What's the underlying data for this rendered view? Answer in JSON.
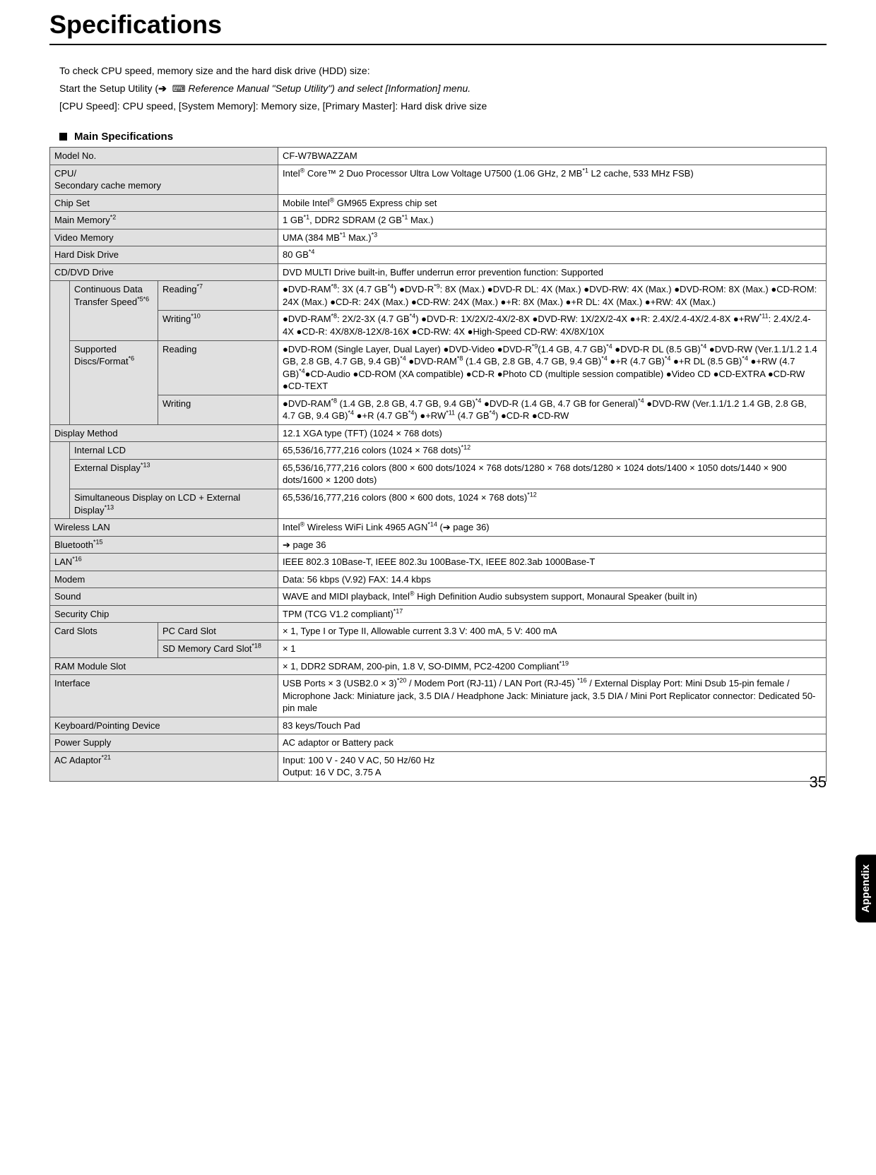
{
  "title": "Specifications",
  "intro": {
    "line1": "To check CPU speed, memory size and the hard disk drive (HDD) size:",
    "line2a": "Start the Setup Utility (",
    "line2b": " Reference Manual \"Setup Utility\") and select [Information] menu.",
    "line3": "[CPU Speed]: CPU speed, [System Memory]: Memory size, [Primary Master]: Hard disk drive size"
  },
  "sectionTitle": "Main Specifications",
  "sideTab": "Appendix",
  "pageNum": "35",
  "rows": {
    "modelNo": {
      "label": "Model No.",
      "value": "CF-W7BWAZZAM"
    },
    "cpu": {
      "label": "CPU/\nSecondary cache memory",
      "valueHtml": "Intel<sup>®</sup> Core™ 2 Duo Processor Ultra Low Voltage U7500 (1.06 GHz, 2 MB<sup>*1</sup> L2 cache, 533 MHz FSB)"
    },
    "chipset": {
      "label": "Chip Set",
      "valueHtml": "Mobile Intel<sup>®</sup> GM965 Express chip set"
    },
    "mainMem": {
      "labelHtml": "Main Memory<sup>*2</sup>",
      "valueHtml": "1 GB<sup>*1</sup>, DDR2 SDRAM (2 GB<sup>*1</sup> Max.)"
    },
    "videoMem": {
      "label": "Video Memory",
      "valueHtml": "UMA (384 MB<sup>*1</sup> Max.)<sup>*3</sup>"
    },
    "hdd": {
      "label": "Hard Disk Drive",
      "valueHtml": "80 GB<sup>*4</sup>"
    },
    "cddvd": {
      "label": "CD/DVD Drive",
      "value": "DVD MULTI Drive built-in, Buffer underrun error prevention function: Supported"
    },
    "contTrans": {
      "labelHtml": "Continuous Data Transfer Speed<sup>*5*6</sup>"
    },
    "reading7": {
      "labelHtml": "Reading<sup>*7</sup>",
      "valueHtml": "●DVD-RAM<sup>*8</sup>: 3X (4.7 GB<sup>*4</sup>) ●DVD-R<sup>*9</sup>: 8X (Max.) ●DVD-R DL: 4X (Max.) ●DVD-RW: 4X (Max.) ●DVD-ROM: 8X (Max.) ●CD-ROM: 24X (Max.) ●CD-R: 24X (Max.) ●CD-RW: 24X (Max.) ●+R: 8X (Max.) ●+R DL: 4X (Max.) ●+RW: 4X (Max.)"
    },
    "writing10": {
      "labelHtml": "Writing<sup>*10</sup>",
      "valueHtml": "●DVD-RAM<sup>*8</sup>: 2X/2-3X (4.7 GB<sup>*4</sup>) ●DVD-R: 1X/2X/2-4X/2-8X ●DVD-RW: 1X/2X/2-4X ●+R: 2.4X/2.4-4X/2.4-8X ●+RW<sup>*11</sup>: 2.4X/2.4-4X ●CD-R: 4X/8X/8-12X/8-16X ●CD-RW: 4X ●High-Speed CD-RW: 4X/8X/10X"
    },
    "supported": {
      "labelHtml": "Supported Discs/Format<sup>*6</sup>"
    },
    "supReading": {
      "label": "Reading",
      "valueHtml": "●DVD-ROM (Single Layer, Dual Layer) ●DVD-Video ●DVD-R<sup>*9</sup>(1.4 GB, 4.7 GB)<sup>*4</sup> ●DVD-R DL (8.5 GB)<sup>*4</sup> ●DVD-RW (Ver.1.1/1.2 1.4 GB, 2.8 GB, 4.7 GB, 9.4 GB)<sup>*4</sup> ●DVD-RAM<sup>*8</sup> (1.4 GB, 2.8 GB, 4.7 GB, 9.4 GB)<sup>*4</sup> ●+R (4.7 GB)<sup>*4</sup> ●+R DL (8.5 GB)<sup>*4</sup> ●+RW (4.7 GB)<sup>*4</sup>●CD-Audio ●CD-ROM (XA compatible) ●CD-R ●Photo CD (multiple session compatible) ●Video CD ●CD-EXTRA ●CD-RW ●CD-TEXT"
    },
    "supWriting": {
      "label": "Writing",
      "valueHtml": "●DVD-RAM<sup>*8</sup> (1.4 GB, 2.8 GB, 4.7 GB, 9.4 GB)<sup>*4</sup> ●DVD-R (1.4 GB, 4.7 GB for General)<sup>*4</sup> ●DVD-RW (Ver.1.1/1.2 1.4 GB, 2.8 GB, 4.7 GB, 9.4 GB)<sup>*4</sup> ●+R (4.7 GB<sup>*4</sup>) ●+RW<sup>*11</sup> (4.7 GB<sup>*4</sup>) ●CD-R ●CD-RW"
    },
    "display": {
      "label": "Display Method",
      "value": "12.1 XGA type (TFT) (1024 × 768 dots)"
    },
    "intLCD": {
      "label": "Internal LCD",
      "valueHtml": "65,536/16,777,216 colors (1024 × 768 dots)<sup>*12</sup>"
    },
    "extDisp": {
      "labelHtml": "External Display<sup>*13</sup>",
      "value": "65,536/16,777,216 colors (800 × 600 dots/1024 × 768 dots/1280 × 768 dots/1280 × 1024 dots/1400 × 1050 dots/1440 × 900 dots/1600 × 1200 dots)"
    },
    "simDisp": {
      "labelHtml": "Simultaneous Display on LCD + External Display<sup>*13</sup>",
      "valueHtml": "65,536/16,777,216 colors (800 × 600 dots, 1024 × 768 dots)<sup>*12</sup>"
    },
    "wlan": {
      "label": "Wireless LAN",
      "valueHtml": "Intel<sup>®</sup> Wireless WiFi Link 4965 AGN<sup>*14</sup> (➔ page 36)"
    },
    "bt": {
      "labelHtml": "Bluetooth<sup>*15</sup>",
      "valueHtml": "➔ page 36"
    },
    "lan": {
      "labelHtml": "LAN<sup>*16</sup>",
      "value": "IEEE 802.3 10Base-T, IEEE 802.3u 100Base-TX, IEEE 802.3ab 1000Base-T"
    },
    "modem": {
      "label": "Modem",
      "value": "Data: 56 kbps (V.92) FAX: 14.4 kbps"
    },
    "sound": {
      "label": "Sound",
      "valueHtml": "WAVE and MIDI playback, Intel<sup>®</sup> High Definition Audio subsystem support, Monaural Speaker (built in)"
    },
    "secchip": {
      "label": "Security Chip",
      "valueHtml": "TPM (TCG V1.2 compliant)<sup>*17</sup>"
    },
    "cardslots": {
      "label": "Card Slots"
    },
    "pccard": {
      "label": "PC Card Slot",
      "value": "× 1, Type I or Type II, Allowable current 3.3 V: 400 mA, 5 V: 400 mA"
    },
    "sdslot": {
      "labelHtml": "SD Memory Card Slot<sup>*18</sup>",
      "value": "× 1"
    },
    "ramslot": {
      "label": "RAM Module Slot",
      "valueHtml": "× 1, DDR2 SDRAM, 200-pin, 1.8 V, SO-DIMM, PC2-4200 Compliant<sup>*19</sup>"
    },
    "interface": {
      "label": "Interface",
      "valueHtml": "USB Ports × 3 (USB2.0 × 3)<sup>*20</sup> / Modem Port (RJ-11) / LAN Port (RJ-45) <sup>*16</sup> / External Display Port: Mini Dsub 15-pin female / Microphone Jack: Miniature jack, 3.5 DIA / Headphone Jack: Miniature jack, 3.5 DIA / Mini Port Replicator connector: Dedicated 50-pin male"
    },
    "keyboard": {
      "label": "Keyboard/Pointing Device",
      "value": "83 keys/Touch Pad"
    },
    "power": {
      "label": "Power Supply",
      "value": "AC adaptor or Battery pack"
    },
    "acadapt": {
      "labelHtml": "AC Adaptor<sup>*21</sup>",
      "value": "Input: 100 V - 240 V AC, 50 Hz/60 Hz\nOutput: 16 V DC, 3.75 A"
    }
  }
}
